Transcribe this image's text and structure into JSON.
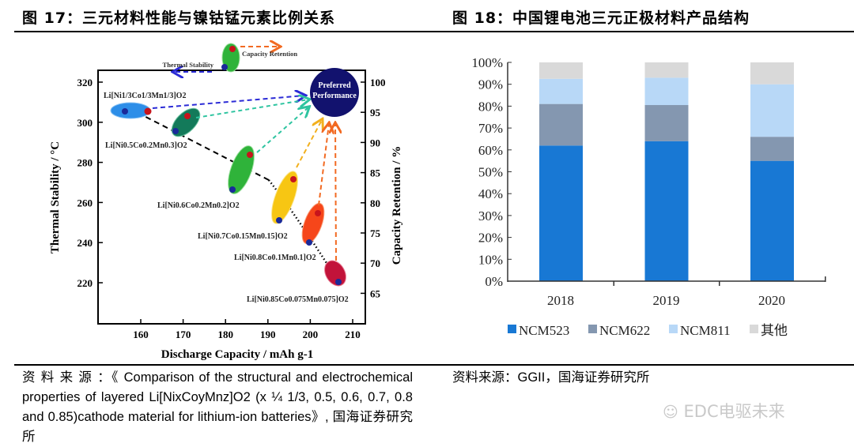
{
  "left": {
    "title": "图 17：三元材料性能与镍钴锰元素比例关系",
    "figure": {
      "x_label": "Discharge Capacity / mAh g-1",
      "y_left_label": "Thermal Stability / °C",
      "y_right_label": "Capacity Retention / %",
      "x_ticks": [
        "160",
        "170",
        "180",
        "190",
        "200",
        "210"
      ],
      "y_left_ticks": [
        "320",
        "300",
        "280",
        "260",
        "240",
        "220"
      ],
      "y_right_ticks": [
        "100",
        "95",
        "90",
        "85",
        "80",
        "75",
        "70",
        "65"
      ],
      "legend_thermal": "Thermal Stability",
      "legend_capacity": "Capacity Retention",
      "preferred_line1": "Preferred",
      "preferred_line2": "Performance",
      "materials": [
        "Li[Ni1/3Co1/3Mn1/3]O2",
        "Li[Ni0.5Co0.2Mn0.3]O2",
        "Li[Ni0.6Co0.2Mn0.2]O2",
        "Li[Ni0.7Co0.15Mn0.15]O2",
        "Li[Ni0.8Co0.1Mn0.1]O2",
        "Li[Ni0.85Co0.075Mn0.075]O2"
      ]
    },
    "source": "资 料 来 源 ：《 Comparison of the structural and electrochemical properties of layered Li[NixCoyMnz]O2 (x ¼ 1/3, 0.5, 0.6, 0.7, 0.8 and 0.85)cathode material for lithium-ion batteries》, 国海证券研究所"
  },
  "right": {
    "title": "图 18：中国锂电池三元正极材料产品结构",
    "source": "资料来源：GGII，国海证券研究所"
  },
  "watermark": "EDC电驱未来",
  "chart_data": {
    "type": "bar",
    "stacked": true,
    "categories": [
      "2018",
      "2019",
      "2020"
    ],
    "series": [
      {
        "name": "NCM523",
        "values": [
          62,
          64,
          55
        ],
        "color": "#1878d4"
      },
      {
        "name": "NCM622",
        "values": [
          19,
          16.5,
          11
        ],
        "color": "#8497b0"
      },
      {
        "name": "NCM811",
        "values": [
          11.5,
          12.5,
          24
        ],
        "color": "#b8d8f7"
      },
      {
        "name": "其他",
        "values": [
          7.5,
          7,
          10
        ],
        "color": "#d9d9d9"
      }
    ],
    "y_ticks": [
      "0%",
      "10%",
      "20%",
      "30%",
      "40%",
      "50%",
      "60%",
      "70%",
      "80%",
      "90%",
      "100%"
    ],
    "ylim": [
      0,
      100
    ],
    "legend": "bottom",
    "grid": false
  }
}
